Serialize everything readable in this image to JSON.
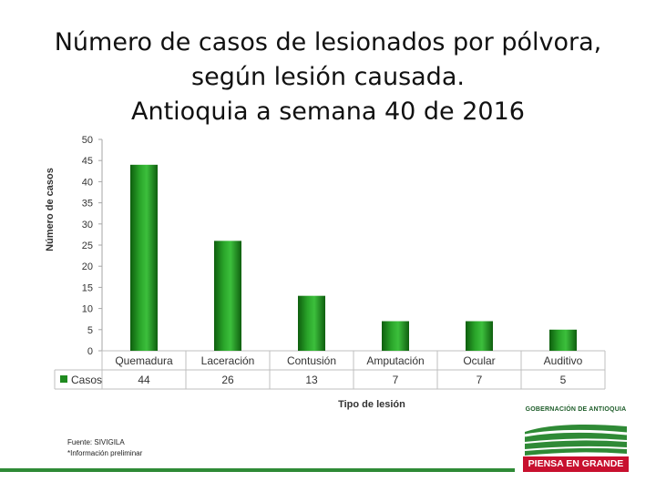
{
  "title_lines": [
    "Número de casos de lesionados por pólvora,",
    "según lesión causada.",
    "Antioquia a semana 40 de 2016"
  ],
  "chart_data": {
    "type": "bar",
    "title": "Número de casos de lesionados por pólvora, según lesión causada. Antioquia a semana 40 de 2016",
    "categories": [
      "Quemadura",
      "Laceración",
      "Contusión",
      "Amputación",
      "Ocular",
      "Auditivo"
    ],
    "series": [
      {
        "name": "Casos",
        "values": [
          44,
          26,
          13,
          7,
          7,
          5
        ]
      }
    ],
    "xlabel": "Tipo de lesión",
    "ylabel": "Número de casos",
    "ylim": [
      0,
      50
    ],
    "yticks": [
      0,
      5,
      10,
      15,
      20,
      25,
      30,
      35,
      40,
      45,
      50
    ],
    "grid": false,
    "legend": "data-table-left",
    "bar_color": "#1f8a1f"
  },
  "footnotes": [
    "Fuente: SIVIGILA",
    "*Información preliminar"
  ],
  "logo": {
    "org": "GOBERNACIÓN DE ANTIOQUIA",
    "slogan": "PIENSA EN GRANDE",
    "colors": {
      "green": "#2f8a36",
      "red": "#c8102e"
    }
  }
}
